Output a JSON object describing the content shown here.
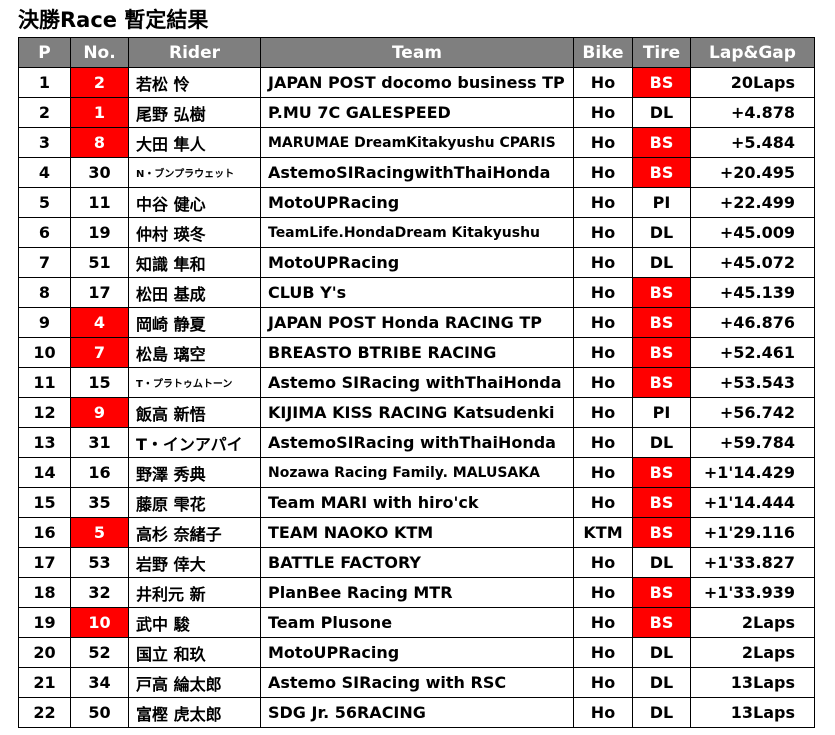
{
  "title": "決勝Race 暫定結果",
  "columns": [
    "P",
    "No.",
    "Rider",
    "Team",
    "Bike",
    "Tire",
    "Lap&Gap"
  ],
  "colors": {
    "header_bg": "#7f7f7f",
    "highlight": "#ff0000"
  },
  "rows": [
    {
      "p": "1",
      "no": "2",
      "no_highlight": true,
      "rider": "若松 怜",
      "team": "JAPAN POST docomo business TP",
      "bike": "Ho",
      "tire": "BS",
      "gap": "20Laps"
    },
    {
      "p": "2",
      "no": "1",
      "no_highlight": true,
      "rider": "尾野 弘樹",
      "team": "P.MU 7C GALESPEED",
      "bike": "Ho",
      "tire": "DL",
      "gap": "+4.878"
    },
    {
      "p": "3",
      "no": "8",
      "no_highlight": true,
      "rider": "大田 隼人",
      "team": "MARUMAE DreamKitakyushu CPARIS",
      "bike": "Ho",
      "tire": "BS",
      "gap": "+5.484"
    },
    {
      "p": "4",
      "no": "30",
      "no_highlight": false,
      "rider": "N・ブンプラウェット",
      "team": "AstemoSIRacingwithThaiHonda",
      "bike": "Ho",
      "tire": "BS",
      "gap": "+20.495"
    },
    {
      "p": "5",
      "no": "11",
      "no_highlight": false,
      "rider": "中谷 健心",
      "team": "MotoUPRacing",
      "bike": "Ho",
      "tire": "PI",
      "gap": "+22.499"
    },
    {
      "p": "6",
      "no": "19",
      "no_highlight": false,
      "rider": "仲村 瑛冬",
      "team": "TeamLife.HondaDream Kitakyushu",
      "bike": "Ho",
      "tire": "DL",
      "gap": "+45.009"
    },
    {
      "p": "7",
      "no": "51",
      "no_highlight": false,
      "rider": "知識 隼和",
      "team": "MotoUPRacing",
      "bike": "Ho",
      "tire": "DL",
      "gap": "+45.072"
    },
    {
      "p": "8",
      "no": "17",
      "no_highlight": false,
      "rider": "松田 基成",
      "team": "CLUB Y's",
      "bike": "Ho",
      "tire": "BS",
      "gap": "+45.139"
    },
    {
      "p": "9",
      "no": "4",
      "no_highlight": true,
      "rider": "岡崎 静夏",
      "team": "JAPAN POST Honda RACING TP",
      "bike": "Ho",
      "tire": "BS",
      "gap": "+46.876"
    },
    {
      "p": "10",
      "no": "7",
      "no_highlight": true,
      "rider": "松島 璃空",
      "team": "BREASTO BTRIBE RACING",
      "bike": "Ho",
      "tire": "BS",
      "gap": "+52.461"
    },
    {
      "p": "11",
      "no": "15",
      "no_highlight": false,
      "rider": "T・プラトゥムトーン",
      "team": "Astemo SIRacing withThaiHonda",
      "bike": "Ho",
      "tire": "BS",
      "gap": "+53.543"
    },
    {
      "p": "12",
      "no": "9",
      "no_highlight": true,
      "rider": "飯高 新悟",
      "team": "KIJIMA KISS RACING Katsudenki",
      "bike": "Ho",
      "tire": "PI",
      "gap": "+56.742"
    },
    {
      "p": "13",
      "no": "31",
      "no_highlight": false,
      "rider": "T・インアパイ",
      "team": "AstemoSIRacing withThaiHonda",
      "bike": "Ho",
      "tire": "DL",
      "gap": "+59.784"
    },
    {
      "p": "14",
      "no": "16",
      "no_highlight": false,
      "rider": "野澤 秀典",
      "team": "Nozawa Racing Family. MALUSAKA",
      "bike": "Ho",
      "tire": "BS",
      "gap": "+1'14.429"
    },
    {
      "p": "15",
      "no": "35",
      "no_highlight": false,
      "rider": "藤原 雫花",
      "team": "Team MARI with hiro'ck",
      "bike": "Ho",
      "tire": "BS",
      "gap": "+1'14.444"
    },
    {
      "p": "16",
      "no": "5",
      "no_highlight": true,
      "rider": "高杉 奈緒子",
      "team": "TEAM NAOKO KTM",
      "bike": "KTM",
      "tire": "BS",
      "gap": "+1'29.116"
    },
    {
      "p": "17",
      "no": "53",
      "no_highlight": false,
      "rider": "岩野 倖大",
      "team": "BATTLE FACTORY",
      "bike": "Ho",
      "tire": "DL",
      "gap": "+1'33.827"
    },
    {
      "p": "18",
      "no": "32",
      "no_highlight": false,
      "rider": "井利元 新",
      "team": "PlanBee Racing MTR",
      "bike": "Ho",
      "tire": "BS",
      "gap": "+1'33.939"
    },
    {
      "p": "19",
      "no": "10",
      "no_highlight": true,
      "rider": "武中 駿",
      "team": "Team Plusone",
      "bike": "Ho",
      "tire": "BS",
      "gap": "2Laps"
    },
    {
      "p": "20",
      "no": "52",
      "no_highlight": false,
      "rider": "国立 和玖",
      "team": "MotoUPRacing",
      "bike": "Ho",
      "tire": "DL",
      "gap": "2Laps"
    },
    {
      "p": "21",
      "no": "34",
      "no_highlight": false,
      "rider": "戸高 綸太郎",
      "team": "Astemo SIRacing with RSC",
      "bike": "Ho",
      "tire": "DL",
      "gap": "13Laps"
    },
    {
      "p": "22",
      "no": "50",
      "no_highlight": false,
      "rider": "富樫 虎太郎",
      "team": "SDG Jr. 56RACING",
      "bike": "Ho",
      "tire": "DL",
      "gap": "13Laps"
    }
  ]
}
